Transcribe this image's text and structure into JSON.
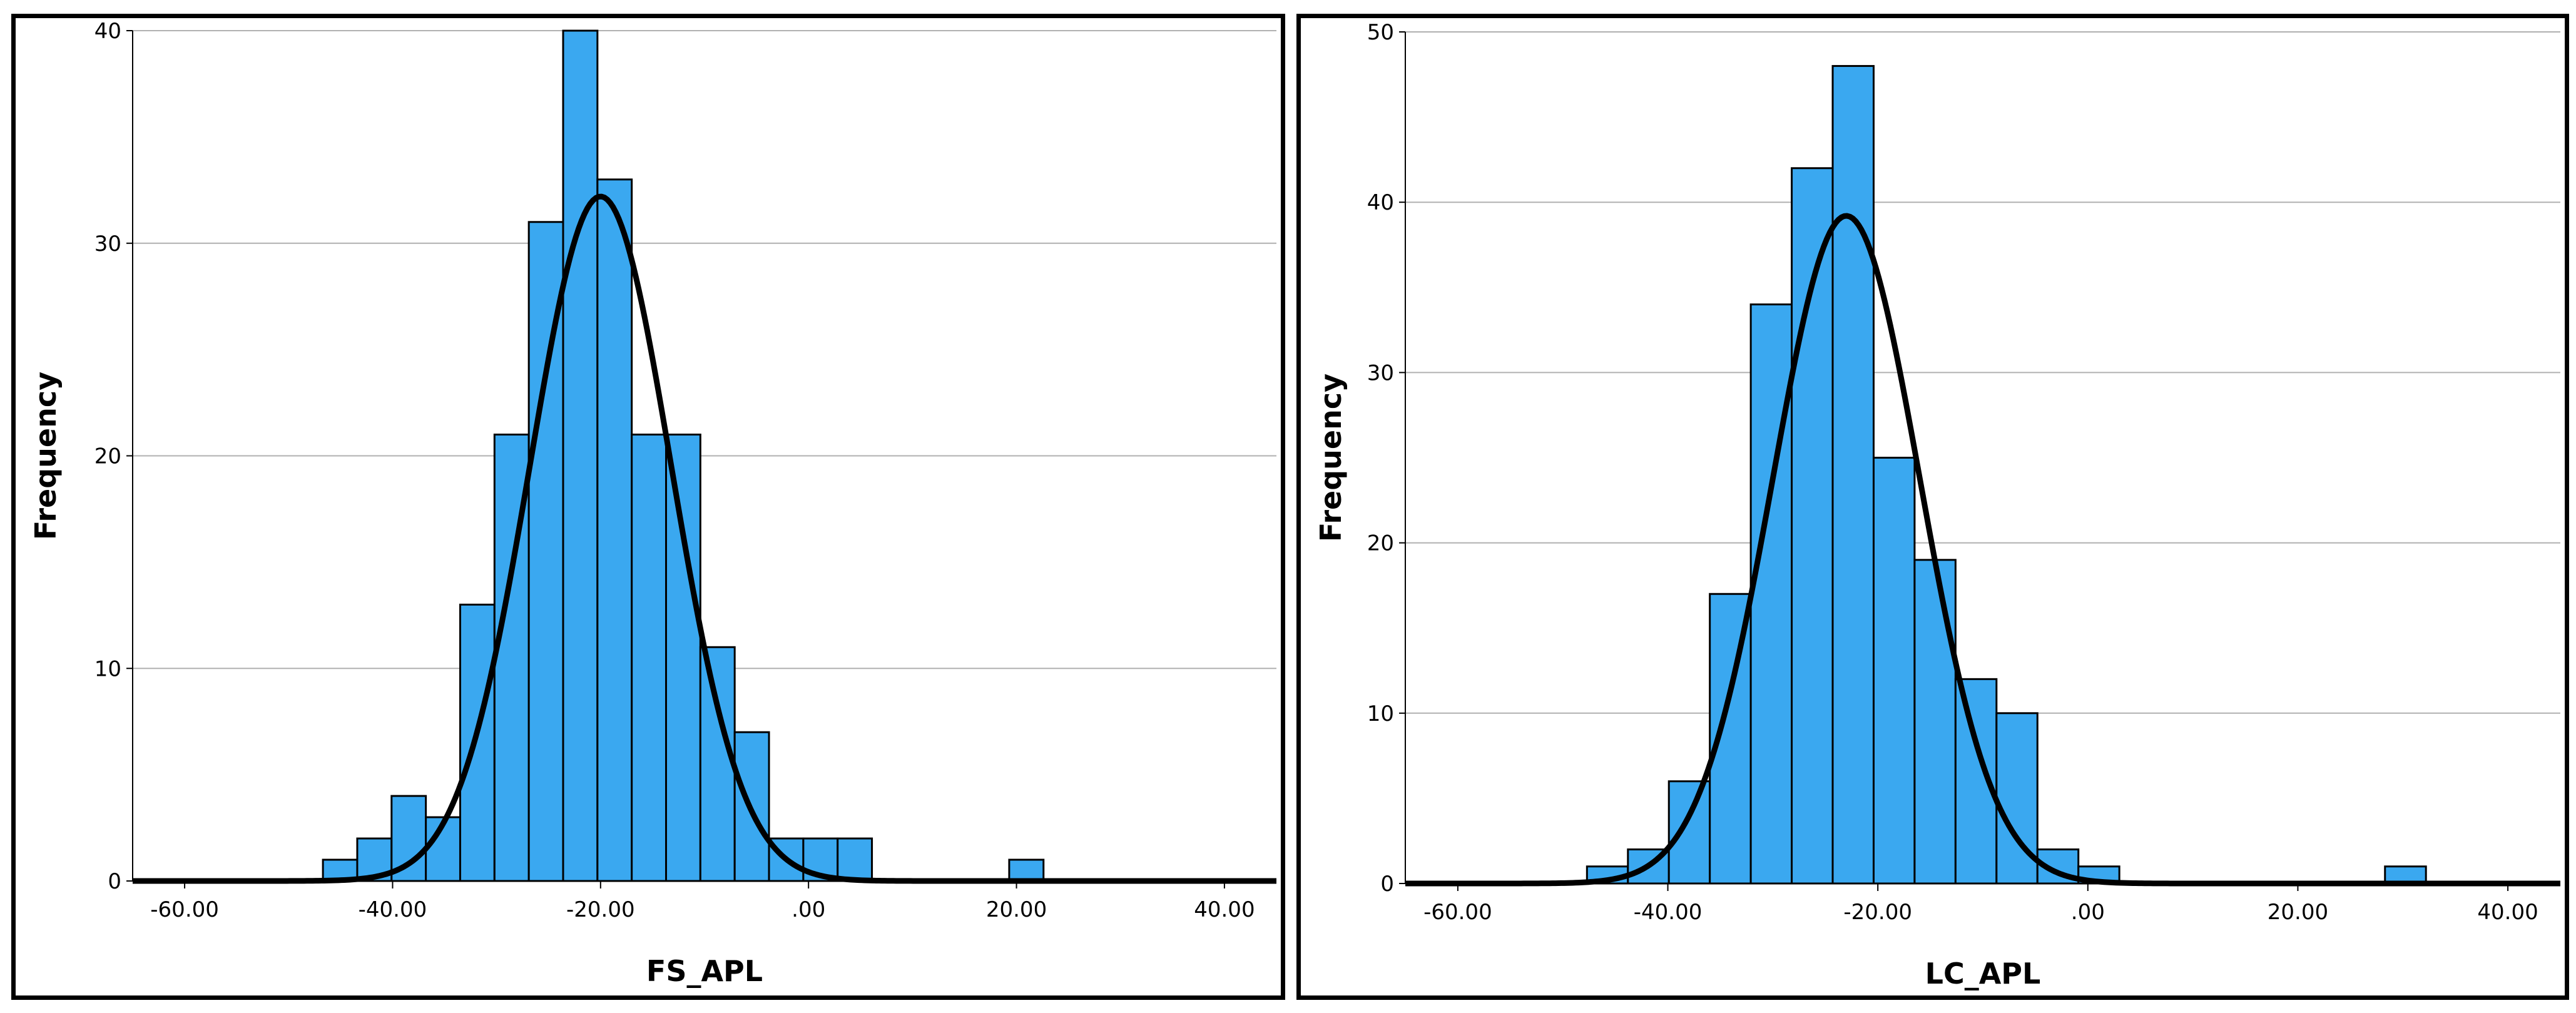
{
  "chart_data": [
    {
      "type": "histogram",
      "xlabel": "FS_APL",
      "ylabel": "Frequency",
      "xlim": [
        -65,
        45
      ],
      "ylim": [
        0,
        40
      ],
      "grid": true,
      "x_ticks": [
        -60,
        -40,
        -20,
        0,
        20,
        40
      ],
      "x_tick_labels": [
        "-60.00",
        "-40.00",
        "-20.00",
        ".00",
        "20.00",
        "40.00"
      ],
      "y_ticks": [
        0,
        10,
        20,
        30,
        40
      ],
      "y_tick_labels": [
        "0",
        "10",
        "20",
        "30",
        "40"
      ],
      "bar_color": "#3aa8f0",
      "bin_width": 3.3,
      "bins": [
        {
          "start": -46.7,
          "count": 1
        },
        {
          "start": -43.4,
          "count": 2
        },
        {
          "start": -40.1,
          "count": 4
        },
        {
          "start": -36.8,
          "count": 3
        },
        {
          "start": -33.5,
          "count": 13
        },
        {
          "start": -30.2,
          "count": 21
        },
        {
          "start": -26.9,
          "count": 31
        },
        {
          "start": -23.6,
          "count": 40
        },
        {
          "start": -20.3,
          "count": 33
        },
        {
          "start": -17.0,
          "count": 21
        },
        {
          "start": -13.7,
          "count": 21
        },
        {
          "start": -10.4,
          "count": 11
        },
        {
          "start": -7.1,
          "count": 7
        },
        {
          "start": -3.8,
          "count": 2
        },
        {
          "start": -0.5,
          "count": 2
        },
        {
          "start": 2.8,
          "count": 2
        },
        {
          "start": 19.3,
          "count": 1
        }
      ],
      "normal_curve": {
        "mean": -20,
        "sd": 6.8,
        "peak": 32.2,
        "color": "#000000"
      }
    },
    {
      "type": "histogram",
      "xlabel": "LC_APL",
      "ylabel": "Frequency",
      "xlim": [
        -65,
        45
      ],
      "ylim": [
        0,
        50
      ],
      "grid": true,
      "x_ticks": [
        -60,
        -40,
        -20,
        0,
        20,
        40
      ],
      "x_tick_labels": [
        "-60.00",
        "-40.00",
        "-20.00",
        ".00",
        "20.00",
        "40.00"
      ],
      "y_ticks": [
        0,
        10,
        20,
        30,
        40,
        50
      ],
      "y_tick_labels": [
        "0",
        "10",
        "20",
        "30",
        "40",
        "50"
      ],
      "bar_color": "#3aa8f0",
      "bin_width": 3.9,
      "bins": [
        {
          "start": -47.7,
          "count": 1
        },
        {
          "start": -43.8,
          "count": 2
        },
        {
          "start": -39.9,
          "count": 6
        },
        {
          "start": -36.0,
          "count": 17
        },
        {
          "start": -32.1,
          "count": 34
        },
        {
          "start": -28.2,
          "count": 42
        },
        {
          "start": -24.3,
          "count": 48
        },
        {
          "start": -20.4,
          "count": 25
        },
        {
          "start": -16.5,
          "count": 19
        },
        {
          "start": -12.6,
          "count": 12
        },
        {
          "start": -8.7,
          "count": 10
        },
        {
          "start": -4.8,
          "count": 2
        },
        {
          "start": -0.9,
          "count": 1
        },
        {
          "start": 28.3,
          "count": 1
        }
      ],
      "normal_curve": {
        "mean": -23,
        "sd": 7.0,
        "peak": 39.2,
        "color": "#000000"
      }
    }
  ]
}
